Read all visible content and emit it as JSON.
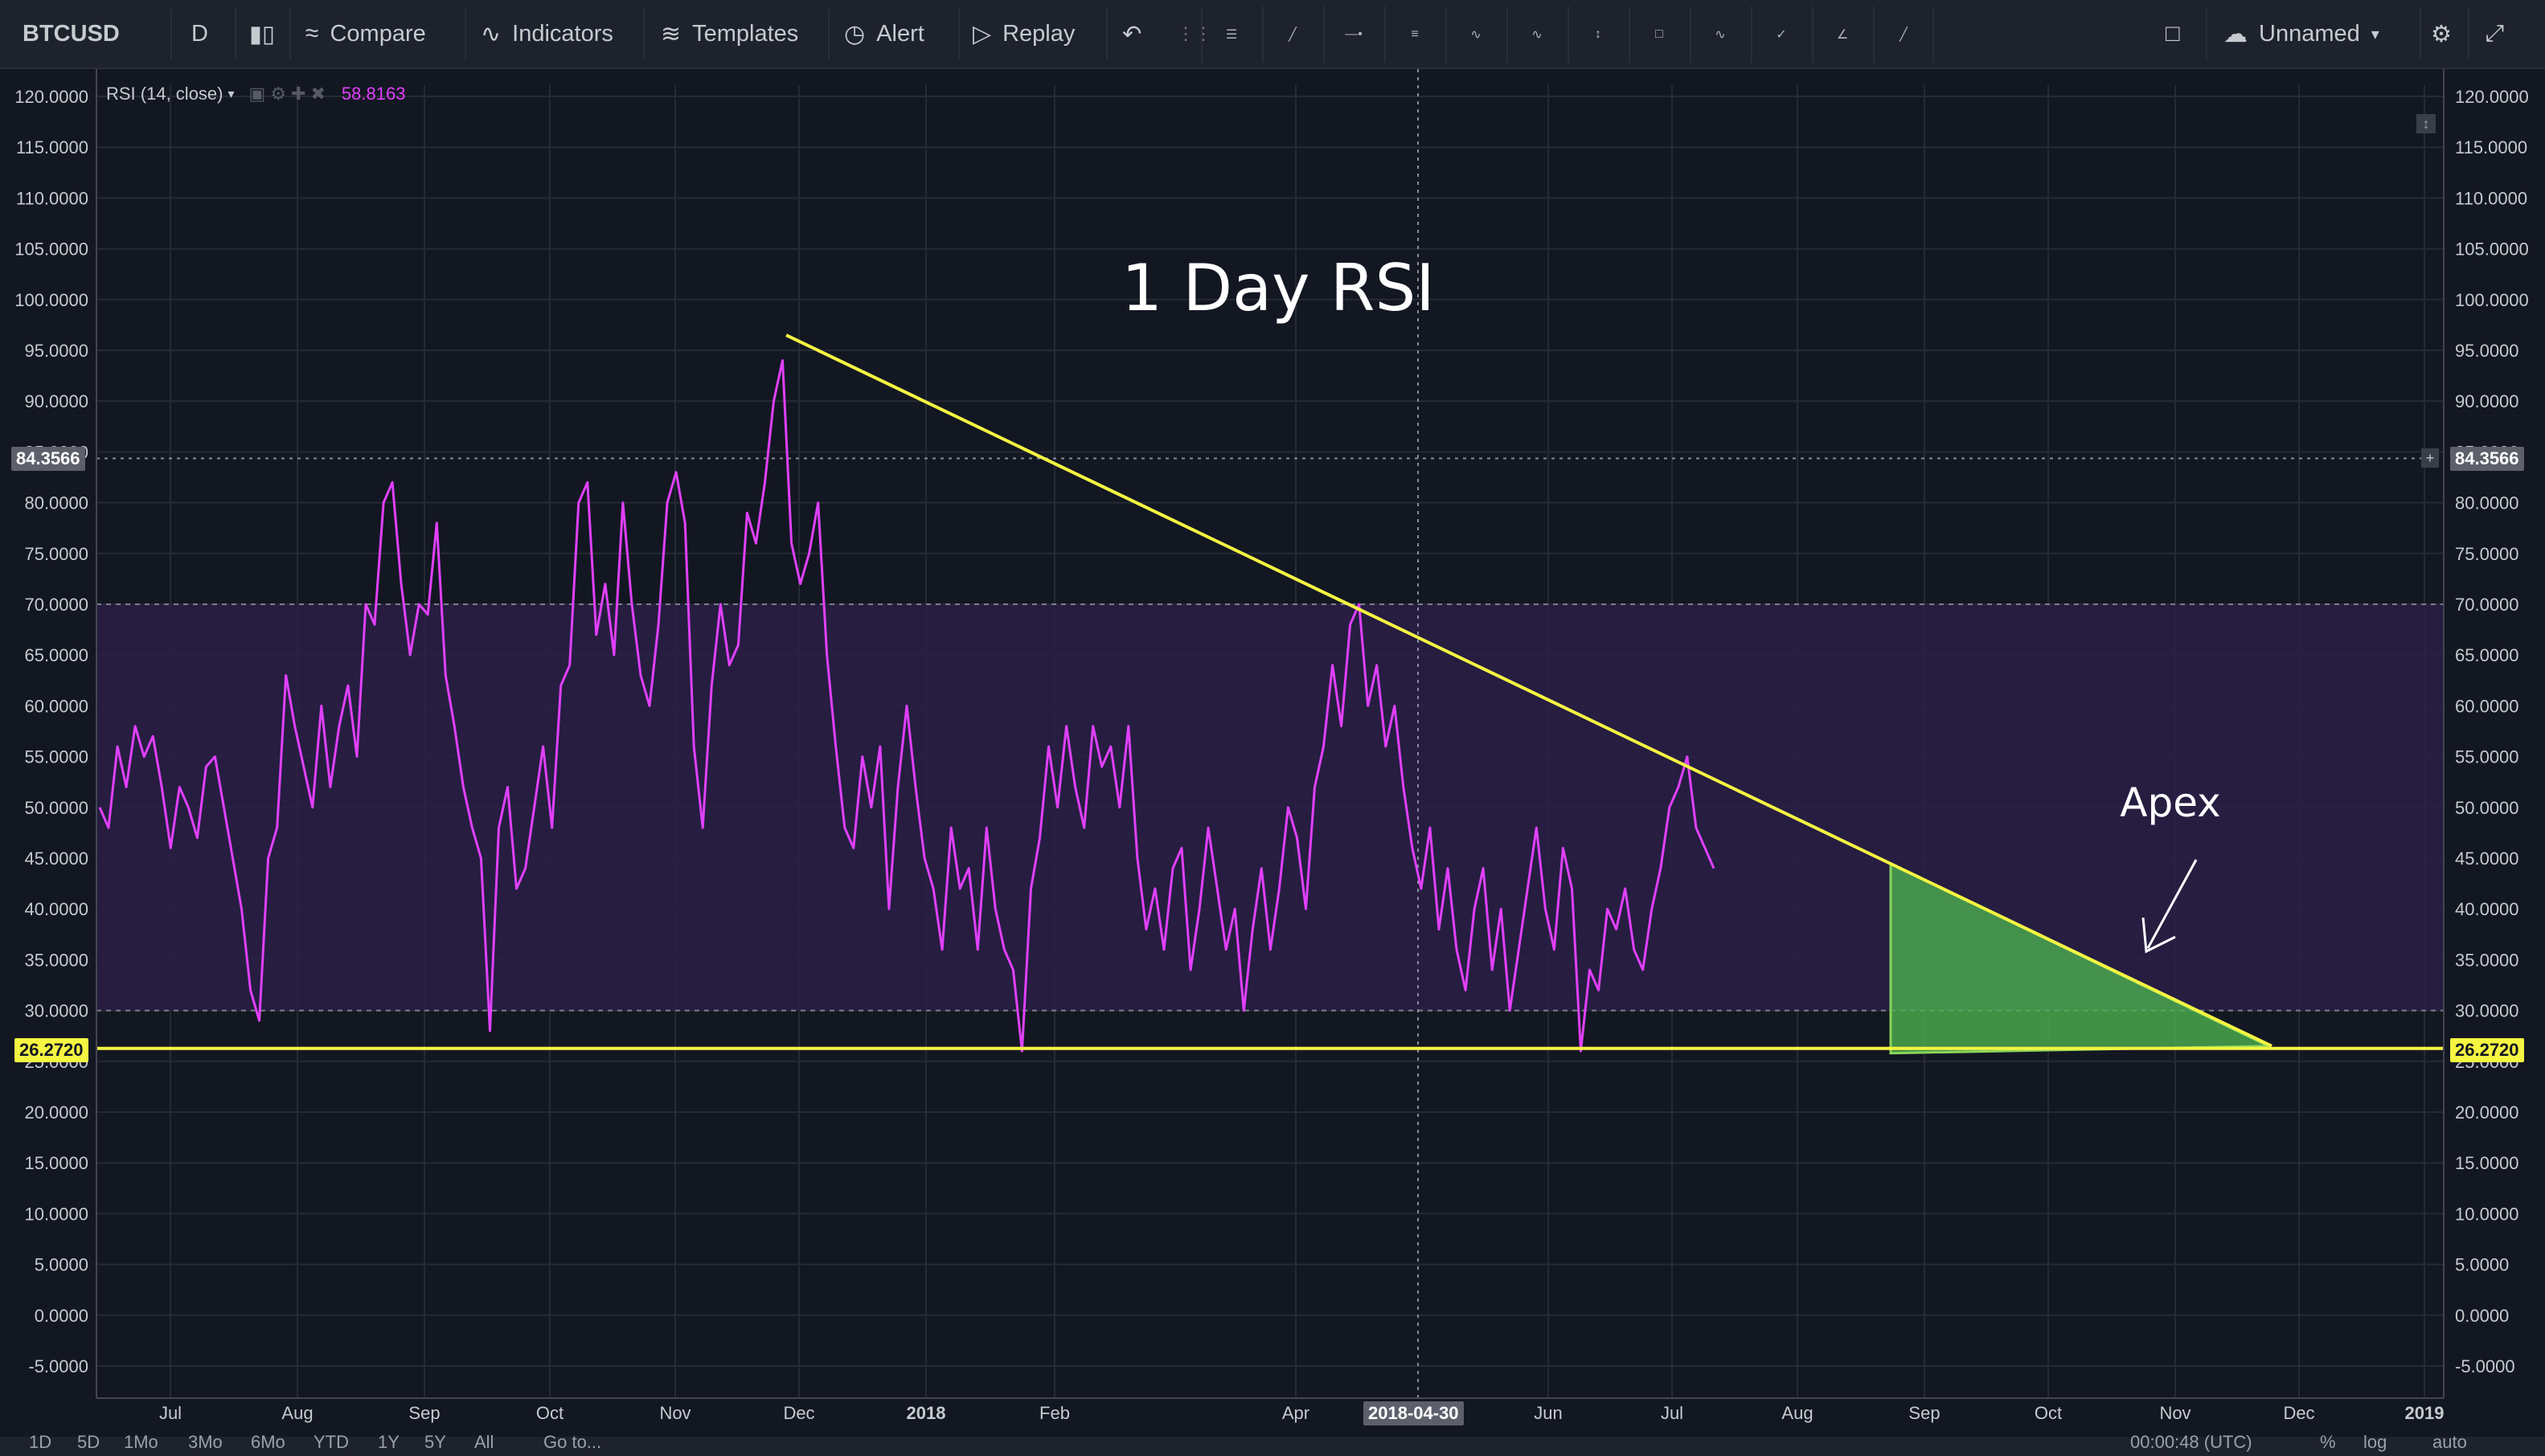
{
  "toolbar": {
    "symbol": "BTCUSD",
    "interval": "D",
    "compare": "Compare",
    "indicators": "Indicators",
    "templates": "Templates",
    "alert": "Alert",
    "replay": "Replay",
    "layout_name": "Unnamed"
  },
  "legend": {
    "indicator": "RSI (14, close)",
    "value": "58.8163",
    "value_color": "#e040fb"
  },
  "colors": {
    "background": "#131722",
    "rsi_line": "#e040fb",
    "band_fill": "#2a1f47",
    "trendline": "#f5f542",
    "apex_fill": "#4caf50",
    "annotation": "#ffffff"
  },
  "price_tags": {
    "crosshair": "84.3566",
    "support": "26.2720"
  },
  "crosshair_date": "2018-04-30",
  "bottom_bar": {
    "ranges": [
      "1D",
      "5D",
      "1Mo",
      "3Mo",
      "6Mo",
      "YTD",
      "1Y",
      "5Y",
      "All"
    ],
    "goto": "Go to...",
    "clock": "00:00:48 (UTC)",
    "percent": "%",
    "log": "log",
    "auto": "auto"
  },
  "chart_data": {
    "type": "line",
    "title": "1 Day RSI",
    "annotation": "Apex",
    "ylim": [
      -5,
      120
    ],
    "yticks": [
      "120.0000",
      "115.0000",
      "110.0000",
      "105.0000",
      "100.0000",
      "95.0000",
      "90.0000",
      "85.0000",
      "80.0000",
      "75.0000",
      "70.0000",
      "65.0000",
      "60.0000",
      "55.0000",
      "50.0000",
      "45.0000",
      "40.0000",
      "35.0000",
      "30.0000",
      "25.0000",
      "20.0000",
      "15.0000",
      "10.0000",
      "5.0000",
      "0.0000",
      "-5.0000"
    ],
    "xticks": [
      "Jul",
      "Aug",
      "Sep",
      "Oct",
      "Nov",
      "Dec",
      "2018",
      "Feb",
      "Apr",
      "Jun",
      "Jul",
      "Aug",
      "Sep",
      "Oct",
      "Nov",
      "Dec",
      "2019"
    ],
    "band": {
      "upper": 70,
      "lower": 30
    },
    "support_level": 26.272,
    "trendline": {
      "start_value": 96.5,
      "end_value": 26.5,
      "label_points": [
        94.5,
        69.5,
        54.0,
        45.0
      ]
    },
    "series": [
      {
        "name": "RSI (14, close)",
        "values": [
          50,
          48,
          56,
          52,
          58,
          55,
          57,
          52,
          46,
          52,
          50,
          47,
          54,
          55,
          50,
          45,
          40,
          32,
          29,
          45,
          48,
          63,
          58,
          54,
          50,
          60,
          52,
          58,
          62,
          55,
          70,
          68,
          80,
          82,
          72,
          65,
          70,
          69,
          78,
          63,
          58,
          52,
          48,
          45,
          28,
          48,
          52,
          42,
          44,
          50,
          56,
          48,
          62,
          64,
          80,
          82,
          67,
          72,
          65,
          80,
          70,
          63,
          60,
          68,
          80,
          83,
          78,
          56,
          48,
          62,
          70,
          64,
          66,
          79,
          76,
          82,
          90,
          94,
          76,
          72,
          75,
          80,
          65,
          56,
          48,
          46,
          55,
          50,
          56,
          40,
          52,
          60,
          52,
          45,
          42,
          36,
          48,
          42,
          44,
          36,
          48,
          40,
          36,
          34,
          26,
          42,
          47,
          56,
          50,
          58,
          52,
          48,
          58,
          54,
          56,
          50,
          58,
          45,
          38,
          42,
          36,
          44,
          46,
          34,
          40,
          48,
          42,
          36,
          40,
          30,
          38,
          44,
          36,
          42,
          50,
          47,
          40,
          52,
          56,
          64,
          58,
          68,
          70,
          60,
          64,
          56,
          60,
          52,
          46,
          42,
          48,
          38,
          44,
          36,
          32,
          40,
          44,
          34,
          40,
          30,
          36,
          42,
          48,
          40,
          36,
          46,
          42,
          26,
          34,
          32,
          40,
          38,
          42,
          36,
          34,
          40,
          44,
          50,
          52,
          55,
          48,
          46,
          44
        ]
      }
    ]
  }
}
